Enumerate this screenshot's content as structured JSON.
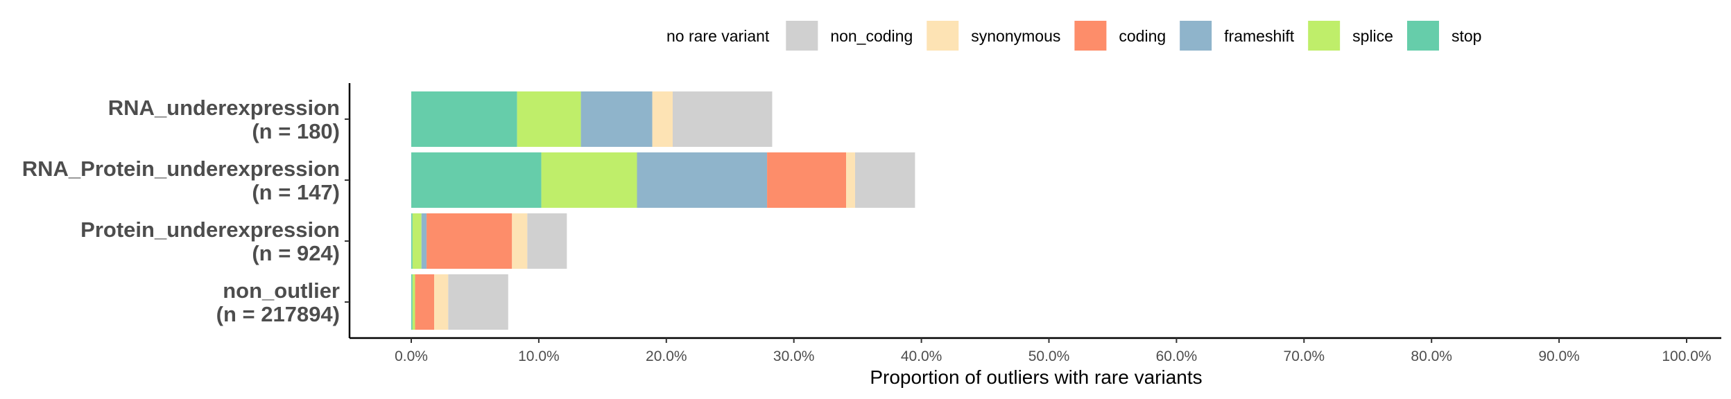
{
  "chart_data": {
    "type": "bar",
    "orientation": "horizontal",
    "stacked": true,
    "xlabel": "Proportion of outliers with rare variants",
    "ylabel": "",
    "xlim": [
      0,
      1
    ],
    "x_ticks": [
      {
        "value": 0.0,
        "label": "0.0%"
      },
      {
        "value": 0.1,
        "label": "10.0%"
      },
      {
        "value": 0.2,
        "label": "20.0%"
      },
      {
        "value": 0.3,
        "label": "30.0%"
      },
      {
        "value": 0.4,
        "label": "40.0%"
      },
      {
        "value": 0.5,
        "label": "50.0%"
      },
      {
        "value": 0.6,
        "label": "60.0%"
      },
      {
        "value": 0.7,
        "label": "70.0%"
      },
      {
        "value": 0.8,
        "label": "80.0%"
      },
      {
        "value": 0.9,
        "label": "90.0%"
      },
      {
        "value": 1.0,
        "label": "100.0%"
      }
    ],
    "categories": [
      {
        "name": "RNA_underexpression",
        "n_label": "(n = 180)"
      },
      {
        "name": "RNA_Protein_underexpression",
        "n_label": "(n = 147)"
      },
      {
        "name": "Protein_underexpression",
        "n_label": "(n = 924)"
      },
      {
        "name": "non_outlier",
        "n_label": "(n = 217894)"
      }
    ],
    "series": [
      {
        "name": "stop",
        "color": "#66cdaa",
        "values": [
          0.083,
          0.102,
          0.001,
          0.001
        ]
      },
      {
        "name": "splice",
        "color": "#bfee6a",
        "values": [
          0.05,
          0.075,
          0.007,
          0.002
        ]
      },
      {
        "name": "frameshift",
        "color": "#8fb4cb",
        "values": [
          0.056,
          0.102,
          0.004,
          0.0
        ]
      },
      {
        "name": "coding",
        "color": "#fd8d6a",
        "values": [
          0.0,
          0.062,
          0.067,
          0.015
        ]
      },
      {
        "name": "synonymous",
        "color": "#fde3b4",
        "values": [
          0.016,
          0.007,
          0.012,
          0.011
        ]
      },
      {
        "name": "non_coding",
        "color": "#d0d0d0",
        "values": [
          0.078,
          0.047,
          0.031,
          0.047
        ]
      },
      {
        "name": "no rare variant",
        "color": "#ffffff",
        "values": [
          0.0,
          0.0,
          0.0,
          0.0
        ]
      }
    ],
    "legend": {
      "position": "top",
      "order": [
        "no rare variant",
        "non_coding",
        "synonymous",
        "coding",
        "frameshift",
        "splice",
        "stop"
      ]
    },
    "grid": false
  }
}
